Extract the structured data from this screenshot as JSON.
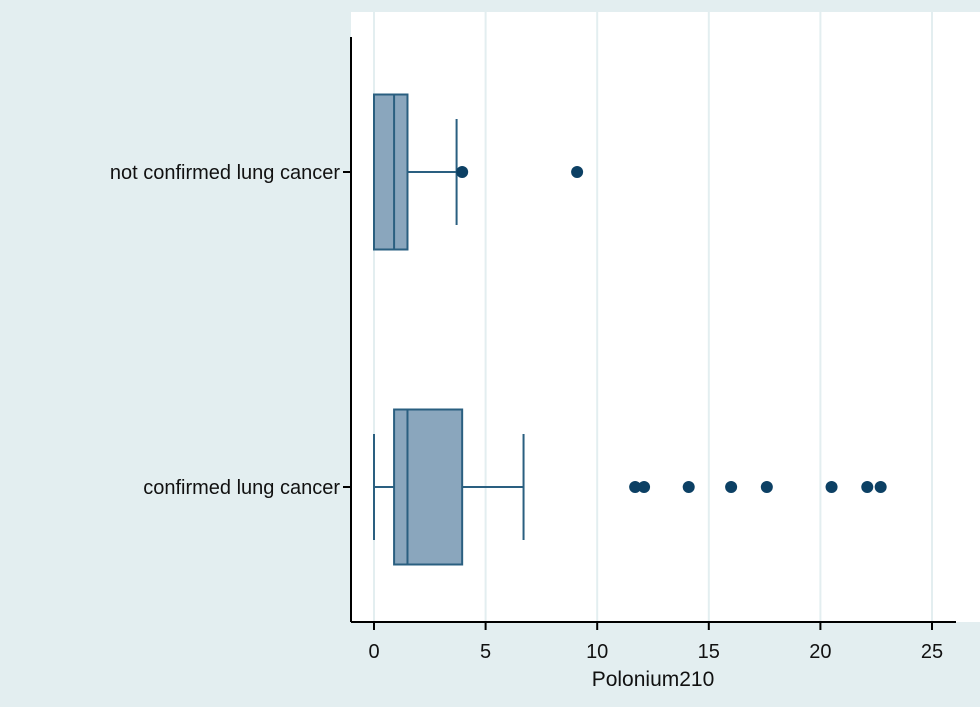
{
  "chart_data": {
    "type": "box",
    "orientation": "horizontal",
    "xlabel": "Polonium210",
    "xlim": [
      -1,
      26
    ],
    "xticks": [
      0,
      5,
      10,
      15,
      20,
      25
    ],
    "grid": "vertical",
    "colors": {
      "background": "#e3eef0",
      "plot_area": "#ffffff",
      "box_fill": "#8aa6bd",
      "line": "#2a5f80",
      "outlier": "#0c4064",
      "grid": "#e3eef0"
    },
    "groups": [
      {
        "name": "not confirmed lung cancer",
        "whisker_low": 0,
        "q1": 0,
        "median": 0.9,
        "q3": 1.5,
        "whisker_high": 3.7,
        "outliers": [
          3.95,
          9.1
        ]
      },
      {
        "name": "confirmed lung cancer",
        "whisker_low": 0,
        "q1": 0.9,
        "median": 1.5,
        "q3": 3.95,
        "whisker_high": 6.7,
        "outliers": [
          11.7,
          12.1,
          14.1,
          16.0,
          17.6,
          20.5,
          22.1,
          22.7
        ]
      }
    ]
  }
}
